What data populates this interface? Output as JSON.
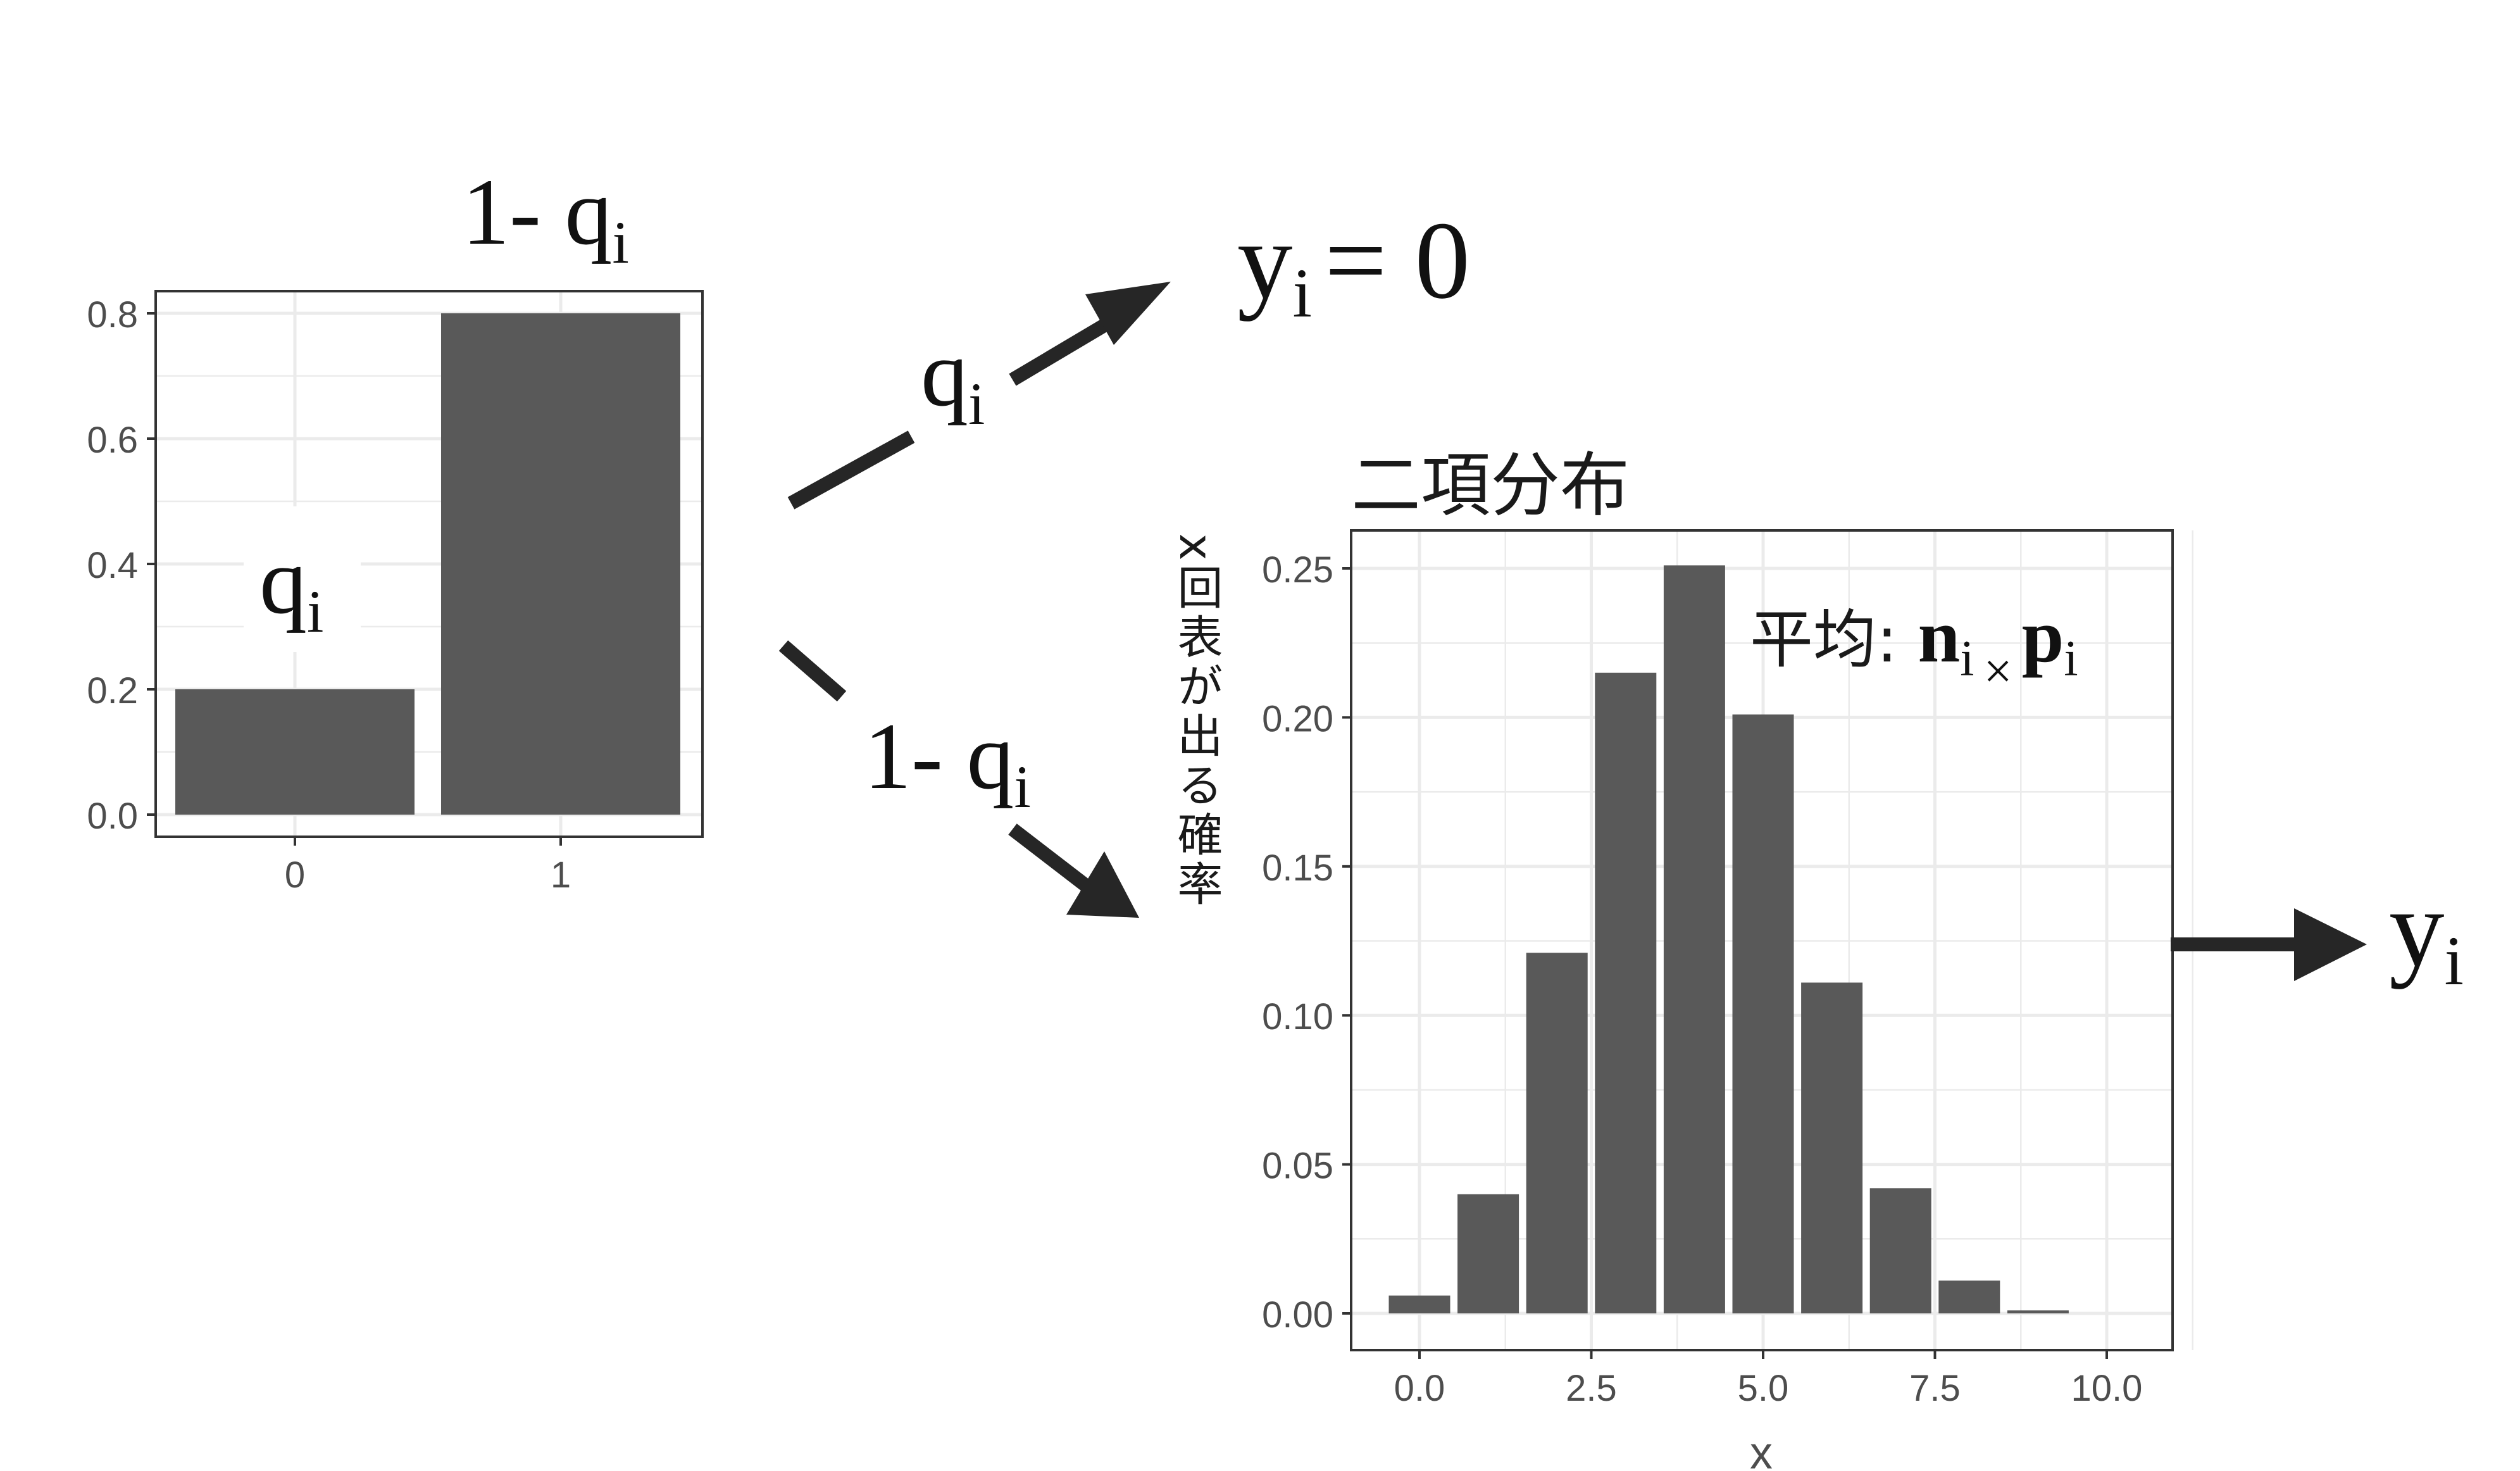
{
  "chart_data": [
    {
      "type": "bar",
      "categories": [
        "0",
        "1"
      ],
      "values": [
        0.2,
        0.8
      ],
      "ylim": [
        0,
        0.8
      ],
      "yticks": [
        "0.0",
        "0.2",
        "0.4",
        "0.6",
        "0.8"
      ],
      "grid": true,
      "bar_labels": {
        "top": "1- q",
        "top_sub": "i",
        "left": "q",
        "left_sub": "i"
      }
    },
    {
      "type": "bar",
      "title": "二項分布",
      "x": [
        0,
        1,
        2,
        3,
        4,
        5,
        6,
        7,
        8,
        9
      ],
      "values": [
        0.006,
        0.04,
        0.121,
        0.215,
        0.251,
        0.201,
        0.111,
        0.042,
        0.011,
        0.001
      ],
      "xlabel": "x",
      "ylabel": "x回表が出る確率",
      "xticks": [
        "0.0",
        "2.5",
        "5.0",
        "7.5",
        "10.0"
      ],
      "yticks": [
        "0.00",
        "0.05",
        "0.10",
        "0.15",
        "0.20",
        "0.25"
      ],
      "xlim": [
        -0.5,
        11.5
      ],
      "ylim": [
        0,
        0.25
      ],
      "grid": true,
      "annotation": {
        "prefix": "平均: ",
        "n": "n",
        "n_sub": "i",
        "times": "×",
        "p": "p",
        "p_sub": "i"
      }
    }
  ],
  "arrows": {
    "upper_label": "q",
    "upper_sub": "i",
    "lower_label": "1- q",
    "lower_sub": "i"
  },
  "outcomes": {
    "zero_y": "y",
    "zero_sub": "i",
    "zero_eq": "= 0",
    "final_y": "y",
    "final_sub": "i"
  },
  "colors": {
    "bar": "#595959",
    "grid": "#ebebeb",
    "panel_border": "#333333",
    "arrow": "#262626"
  }
}
